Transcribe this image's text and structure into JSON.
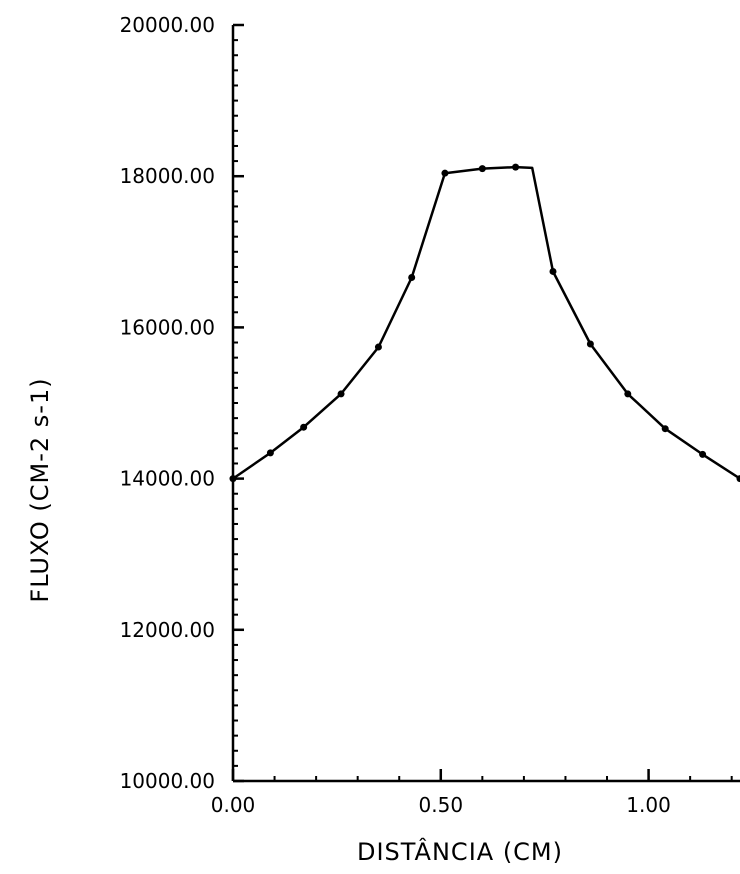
{
  "chart_data": {
    "type": "line",
    "title": "",
    "xlabel": "DISTÂNCIA (CM)",
    "ylabel": "FLUXO (CM-2 s-1)",
    "xlim": [
      0.0,
      1.22
    ],
    "ylim": [
      10000.0,
      20000.0
    ],
    "x_ticks": [
      {
        "value": 0.0,
        "label": "0.00"
      },
      {
        "value": 0.5,
        "label": "0.50"
      },
      {
        "value": 1.0,
        "label": "1.00"
      }
    ],
    "y_ticks": [
      {
        "value": 10000,
        "label": "10000.00"
      },
      {
        "value": 12000,
        "label": "12000.00"
      },
      {
        "value": 14000,
        "label": "14000.00"
      },
      {
        "value": 16000,
        "label": "16000.00"
      },
      {
        "value": 18000,
        "label": "18000.00"
      },
      {
        "value": 20000,
        "label": "20000.00"
      }
    ],
    "grid": false,
    "legend": "none",
    "line_color": "#000000",
    "series": [
      {
        "values": [
          {
            "x": 0.0,
            "y": 14000
          },
          {
            "x": 0.09,
            "y": 14340
          },
          {
            "x": 0.17,
            "y": 14680
          },
          {
            "x": 0.26,
            "y": 15120
          },
          {
            "x": 0.35,
            "y": 15740
          },
          {
            "x": 0.43,
            "y": 16660
          },
          {
            "x": 0.51,
            "y": 18040
          },
          {
            "x": 0.6,
            "y": 18100
          },
          {
            "x": 0.68,
            "y": 18120
          },
          {
            "x": 0.77,
            "y": 16740
          },
          {
            "x": 0.86,
            "y": 15780
          },
          {
            "x": 0.95,
            "y": 15120
          },
          {
            "x": 1.04,
            "y": 14660
          },
          {
            "x": 1.13,
            "y": 14320
          },
          {
            "x": 1.22,
            "y": 14000
          }
        ],
        "vertices_without_marker": [
          {
            "x": 0.72,
            "y": 18110
          }
        ]
      }
    ]
  }
}
